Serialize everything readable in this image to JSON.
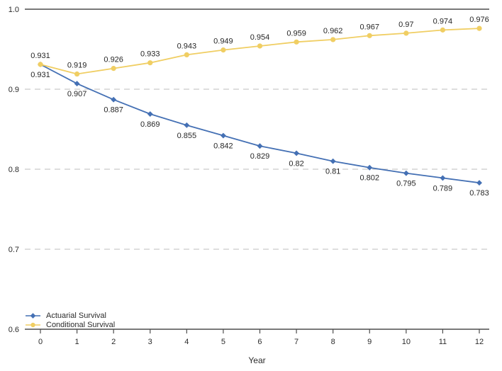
{
  "colors": {
    "actuarial_blue": "#4470b4",
    "conditional_gold": "#f0ce63",
    "grid": "#c9c9c9",
    "axis": "#4d4d4d",
    "text": "#2b2b2b"
  },
  "chart_data": {
    "type": "line",
    "title": "",
    "xlabel": "Year",
    "ylabel": "",
    "x": [
      0,
      1,
      2,
      3,
      4,
      5,
      6,
      7,
      8,
      9,
      10,
      11,
      12
    ],
    "xticks": [
      "0",
      "1",
      "2",
      "3",
      "4",
      "5",
      "6",
      "7",
      "8",
      "9",
      "10",
      "11",
      "12"
    ],
    "ylim": [
      0.6,
      1.0
    ],
    "yticks": [
      1.0,
      0.9,
      0.8,
      0.7,
      0.6
    ],
    "ytick_labels": [
      "1.0",
      "0.9",
      "0.8",
      "0.7",
      "0.6"
    ],
    "grid": "horizontal-dashed",
    "legend_position": "bottom-left",
    "data_labels": true,
    "series": [
      {
        "name": "Actuarial Survival",
        "color": "#4470b4",
        "marker": "diamond",
        "label_position": "below",
        "values": [
          0.931,
          0.907,
          0.887,
          0.869,
          0.855,
          0.842,
          0.829,
          0.82,
          0.81,
          0.802,
          0.795,
          0.789,
          0.783
        ],
        "labels": [
          "0.931",
          "0.907",
          "0.887",
          "0.869",
          "0.855",
          "0.842",
          "0.829",
          "0.82",
          "0.81",
          "0.802",
          "0.795",
          "0.789",
          "0.783"
        ]
      },
      {
        "name": "Conditional Survival",
        "color": "#f0ce63",
        "marker": "circle",
        "label_position": "above",
        "values": [
          0.931,
          0.919,
          0.926,
          0.933,
          0.943,
          0.949,
          0.954,
          0.959,
          0.962,
          0.967,
          0.97,
          0.974,
          0.976
        ],
        "labels": [
          "0.931",
          "0.919",
          "0.926",
          "0.933",
          "0.943",
          "0.949",
          "0.954",
          "0.959",
          "0.962",
          "0.967",
          "0.97",
          "0.974",
          "0.976"
        ]
      }
    ]
  }
}
